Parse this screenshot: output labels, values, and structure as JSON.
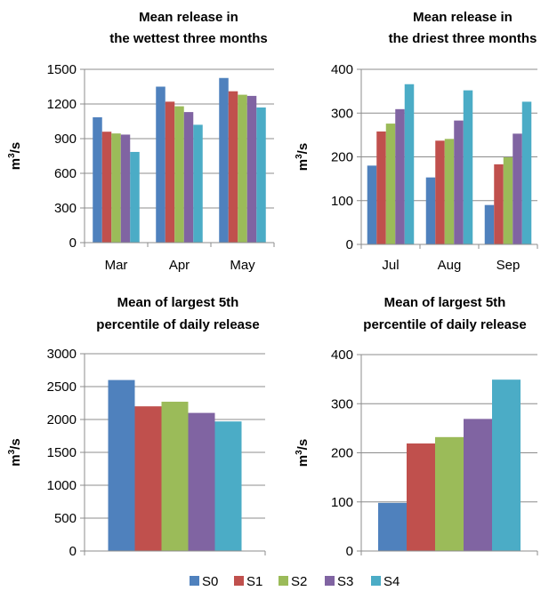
{
  "colors": {
    "S0": "#4F81BD",
    "S1": "#C0504D",
    "S2": "#9BBB59",
    "S3": "#8064A2",
    "S4": "#4BACC6"
  },
  "legend": {
    "placement": "bottom",
    "entries": [
      "S0",
      "S1",
      "S2",
      "S3",
      "S4"
    ]
  },
  "chart_data": [
    {
      "type": "bar",
      "title": [
        "Mean release in",
        "the wettest three months"
      ],
      "ylabel": "m³/s",
      "categories": [
        "Mar",
        "Apr",
        "May"
      ],
      "ylim": [
        0,
        1500
      ],
      "yticks": [
        0,
        300,
        600,
        900,
        1200,
        1500
      ],
      "grid": true,
      "series": [
        {
          "name": "S0",
          "values": [
            1085,
            1350,
            1425
          ]
        },
        {
          "name": "S1",
          "values": [
            960,
            1220,
            1310
          ]
        },
        {
          "name": "S2",
          "values": [
            945,
            1180,
            1280
          ]
        },
        {
          "name": "S3",
          "values": [
            935,
            1130,
            1270
          ]
        },
        {
          "name": "S4",
          "values": [
            785,
            1020,
            1170
          ]
        }
      ]
    },
    {
      "type": "bar",
      "title": [
        "Mean release in",
        "the driest three months"
      ],
      "ylabel": "m³/s",
      "categories": [
        "Jul",
        "Aug",
        "Sep"
      ],
      "ylim": [
        0,
        400
      ],
      "yticks": [
        0,
        100,
        200,
        300,
        400
      ],
      "grid": true,
      "series": [
        {
          "name": "S0",
          "values": [
            180,
            153,
            90
          ]
        },
        {
          "name": "S1",
          "values": [
            258,
            237,
            183
          ]
        },
        {
          "name": "S2",
          "values": [
            276,
            241,
            199
          ]
        },
        {
          "name": "S3",
          "values": [
            309,
            283,
            253
          ]
        },
        {
          "name": "S4",
          "values": [
            366,
            352,
            326
          ]
        }
      ]
    },
    {
      "type": "bar",
      "title": [
        "Mean of largest  5th",
        "percentile of daily release"
      ],
      "ylabel": "m³/s",
      "categories": [
        ""
      ],
      "ylim": [
        0,
        3000
      ],
      "yticks": [
        0,
        500,
        1000,
        1500,
        2000,
        2500,
        3000
      ],
      "grid": true,
      "series": [
        {
          "name": "S0",
          "values": [
            2600
          ]
        },
        {
          "name": "S1",
          "values": [
            2200
          ]
        },
        {
          "name": "S2",
          "values": [
            2270
          ]
        },
        {
          "name": "S3",
          "values": [
            2100
          ]
        },
        {
          "name": "S4",
          "values": [
            1970
          ]
        }
      ]
    },
    {
      "type": "bar",
      "title": [
        "Mean of largest  5th",
        "percentile of daily release"
      ],
      "ylabel": "m³/s",
      "categories": [
        ""
      ],
      "ylim": [
        0,
        400
      ],
      "yticks": [
        0,
        100,
        200,
        300,
        400
      ],
      "grid": true,
      "series": [
        {
          "name": "S0",
          "values": [
            98
          ]
        },
        {
          "name": "S1",
          "values": [
            219
          ]
        },
        {
          "name": "S2",
          "values": [
            232
          ]
        },
        {
          "name": "S3",
          "values": [
            269
          ]
        },
        {
          "name": "S4",
          "values": [
            349
          ]
        }
      ]
    }
  ]
}
